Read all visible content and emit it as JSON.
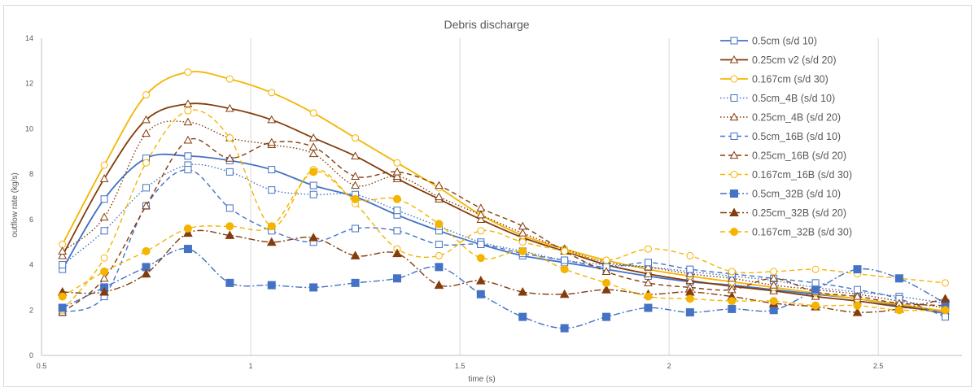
{
  "chart_data": {
    "type": "line",
    "title": "Debris discharge",
    "xlabel": "time (s)",
    "ylabel": "outflow rate (kg/s)",
    "xlim": [
      0.5,
      2.7
    ],
    "ylim": [
      0,
      14
    ],
    "xticks": [
      "0.5",
      "1",
      "1.5",
      "2",
      "2.5"
    ],
    "yticks": [
      "0",
      "2",
      "4",
      "6",
      "8",
      "10",
      "12",
      "14"
    ],
    "grid": "vertical",
    "legend": "right",
    "x": [
      0.55,
      0.65,
      0.75,
      0.85,
      0.95,
      1.05,
      1.15,
      1.25,
      1.35,
      1.45,
      1.55,
      1.65,
      1.75,
      1.85,
      1.95,
      2.05,
      2.15,
      2.25,
      2.35,
      2.45,
      2.55,
      2.66
    ],
    "series": [
      {
        "name": "0.5cm (s/d 10)",
        "color": "#4472c4",
        "marker": "square-open",
        "dash": "solid",
        "values": [
          3.8,
          6.9,
          8.7,
          8.8,
          8.6,
          8.2,
          7.5,
          7.0,
          6.2,
          5.5,
          4.9,
          4.4,
          4.1,
          3.8,
          3.5,
          3.25,
          3.1,
          2.9,
          2.7,
          2.5,
          2.2,
          1.85
        ]
      },
      {
        "name": "0.25cm v2 (s/d 20)",
        "color": "#843c0c",
        "marker": "triangle-open",
        "dash": "solid",
        "values": [
          4.4,
          7.8,
          10.4,
          11.1,
          10.9,
          10.4,
          9.6,
          8.8,
          7.8,
          6.9,
          6.0,
          5.2,
          4.6,
          4.0,
          3.6,
          3.3,
          3.05,
          2.85,
          2.6,
          2.4,
          2.15,
          1.95
        ]
      },
      {
        "name": "0.167cm (s/d 30)",
        "color": "#f4b400",
        "marker": "circle-open",
        "dash": "solid",
        "values": [
          4.9,
          8.4,
          11.5,
          12.5,
          12.2,
          11.6,
          10.7,
          9.6,
          8.5,
          7.4,
          6.2,
          5.3,
          4.7,
          4.2,
          3.8,
          3.5,
          3.25,
          3.0,
          2.75,
          2.5,
          2.25,
          1.95
        ]
      },
      {
        "name": "0.5cm_4B (s/d 10)",
        "color": "#4472c4",
        "marker": "square-open",
        "dash": "dot",
        "values": [
          4.0,
          5.5,
          7.4,
          8.4,
          8.1,
          7.3,
          7.1,
          7.1,
          6.4,
          5.7,
          5.0,
          4.6,
          4.2,
          4.0,
          3.9,
          3.7,
          3.5,
          3.3,
          3.0,
          2.8,
          2.6,
          2.3
        ]
      },
      {
        "name": "0.25cm_4B (s/d 20)",
        "color": "#843c0c",
        "marker": "triangle-open",
        "dash": "dot",
        "values": [
          4.6,
          6.1,
          9.8,
          10.3,
          9.6,
          9.3,
          8.9,
          7.5,
          7.9,
          7.0,
          6.2,
          5.4,
          4.7,
          4.1,
          3.9,
          3.6,
          3.4,
          3.1,
          2.9,
          2.7,
          2.4,
          2.1
        ]
      },
      {
        "name": "0.5cm_16B (s/d 10)",
        "color": "#4472c4",
        "marker": "square-open",
        "dash": "dash",
        "values": [
          1.9,
          2.6,
          6.6,
          8.2,
          6.5,
          5.5,
          5.0,
          5.6,
          5.5,
          4.9,
          4.9,
          4.5,
          4.2,
          3.9,
          4.1,
          3.8,
          3.6,
          3.4,
          3.2,
          2.9,
          2.5,
          1.7
        ]
      },
      {
        "name": "0.25cm_16B (s/d 20)",
        "color": "#843c0c",
        "marker": "triangle-open",
        "dash": "dash",
        "values": [
          1.9,
          3.4,
          6.6,
          9.5,
          8.7,
          9.4,
          9.2,
          7.9,
          8.1,
          7.5,
          6.5,
          5.7,
          4.6,
          3.7,
          3.2,
          3.0,
          2.9,
          3.4,
          2.8,
          2.6,
          2.3,
          2.2
        ]
      },
      {
        "name": "0.167cm_16B (s/d 30)",
        "color": "#f4b400",
        "marker": "circle-open",
        "dash": "dash",
        "values": [
          2.0,
          4.3,
          8.5,
          10.8,
          9.6,
          5.7,
          8.2,
          6.7,
          4.7,
          4.4,
          5.5,
          5.0,
          4.6,
          4.2,
          4.7,
          4.4,
          3.7,
          3.7,
          3.8,
          3.6,
          3.4,
          3.2
        ]
      },
      {
        "name": "0.5cm_32B (s/d 10)",
        "color": "#4472c4",
        "marker": "square-filled",
        "dash": "dashdot",
        "values": [
          2.1,
          3.0,
          3.9,
          4.7,
          3.2,
          3.1,
          3.0,
          3.2,
          3.4,
          3.9,
          2.7,
          1.7,
          1.2,
          1.7,
          2.1,
          1.9,
          2.05,
          2.0,
          2.9,
          3.8,
          3.4,
          2.3
        ]
      },
      {
        "name": "0.25cm_32B (s/d 20)",
        "color": "#843c0c",
        "marker": "triangle-filled",
        "dash": "dashdot",
        "values": [
          2.8,
          2.8,
          3.6,
          5.4,
          5.3,
          5.0,
          5.2,
          4.4,
          4.5,
          3.1,
          3.3,
          2.8,
          2.7,
          2.9,
          2.7,
          2.8,
          2.6,
          2.3,
          2.15,
          1.9,
          2.05,
          2.5
        ]
      },
      {
        "name": "0.167cm_32B (s/d 30)",
        "color": "#f4b400",
        "marker": "circle-filled",
        "dash": "dash",
        "values": [
          2.6,
          3.7,
          4.6,
          5.6,
          5.7,
          5.7,
          8.1,
          6.9,
          6.9,
          5.8,
          4.3,
          4.6,
          3.8,
          3.2,
          2.6,
          2.5,
          2.4,
          2.4,
          2.2,
          2.2,
          2.0,
          2.0
        ]
      }
    ]
  }
}
